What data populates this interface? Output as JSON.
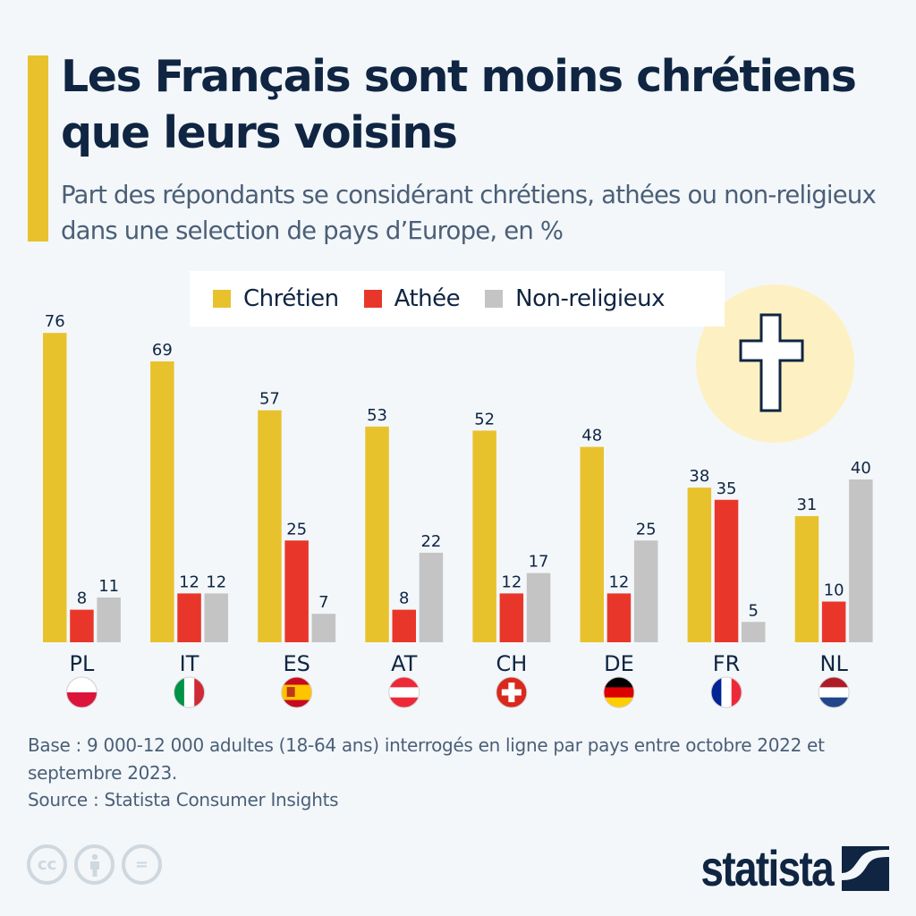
{
  "header": {
    "title": "Les Français sont moins chrétiens que leurs voisins",
    "subtitle": "Part des répondants se considérant chrétiens, athées ou non-religieux dans une selection de pays d’Europe, en %"
  },
  "legend": {
    "items": [
      {
        "label": "Chrétien",
        "color": "#e8c22d"
      },
      {
        "label": "Athée",
        "color": "#e8372a"
      },
      {
        "label": "Non-religieux",
        "color": "#c4c4c4"
      }
    ]
  },
  "decoration": {
    "icon": "cross-icon"
  },
  "footer": {
    "note": "Base : 9 000-12 000 adultes (18-64 ans) interrogés en ligne par pays entre octobre 2022 et septembre 2023.",
    "source": "Source : Statista Consumer Insights",
    "license_icons": [
      "cc-icon",
      "attribution-icon",
      "no-derivatives-icon"
    ],
    "cc_label": "cc",
    "eq_label": "=",
    "brand": "statista"
  },
  "chart_data": {
    "type": "bar",
    "title": "Les Français sont moins chrétiens que leurs voisins",
    "subtitle": "Part des répondants se considérant chrétiens, athées ou non-religieux dans une selection de pays d’Europe, en %",
    "xlabel": "",
    "ylabel": "",
    "ylim": [
      0,
      80
    ],
    "grid": false,
    "legend_position": "top-center",
    "categories": [
      "PL",
      "IT",
      "ES",
      "AT",
      "CH",
      "DE",
      "FR",
      "NL"
    ],
    "flags": [
      "poland",
      "italy",
      "spain",
      "austria",
      "switzerland",
      "germany",
      "france",
      "netherlands"
    ],
    "series": [
      {
        "name": "Chrétien",
        "color": "#e8c22d",
        "values": [
          76,
          69,
          57,
          53,
          52,
          48,
          38,
          31
        ]
      },
      {
        "name": "Athée",
        "color": "#e8372a",
        "values": [
          8,
          12,
          25,
          8,
          12,
          12,
          35,
          10
        ]
      },
      {
        "name": "Non-religieux",
        "color": "#c4c4c4",
        "values": [
          11,
          12,
          7,
          22,
          17,
          25,
          5,
          40
        ]
      }
    ]
  }
}
